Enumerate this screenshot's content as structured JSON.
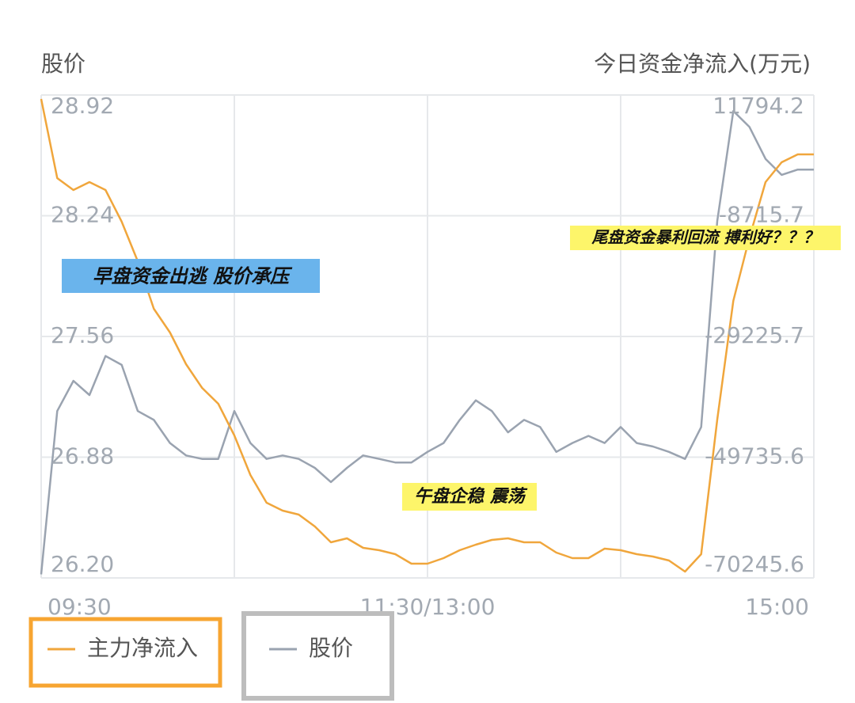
{
  "chart_data": {
    "type": "line",
    "left_axis_label": "股价",
    "right_axis_label": "今日资金净流入(万元)",
    "x": [
      0,
      5,
      10,
      15,
      20,
      25,
      30,
      35,
      40,
      45,
      50,
      55,
      60,
      65,
      70,
      75,
      80,
      85,
      90,
      95,
      100,
      105,
      110,
      115,
      120,
      125,
      130,
      135,
      140,
      145,
      150,
      155,
      160,
      165,
      170,
      175,
      180,
      185,
      190,
      195,
      200,
      205,
      210,
      215,
      220,
      225,
      230,
      235,
      240
    ],
    "xlim": [
      0,
      240
    ],
    "xticks": [
      {
        "value": 0,
        "label": "09:30"
      },
      {
        "value": 60,
        "label": null
      },
      {
        "value": 120,
        "label": "11:30/13:00"
      },
      {
        "value": 180,
        "label": null
      },
      {
        "value": 240,
        "label": "15:00"
      }
    ],
    "ylim": [
      26.2,
      28.92
    ],
    "yticks": [
      28.92,
      28.24,
      27.56,
      26.88,
      {
        "value": 26.2,
        "label": "26.20"
      }
    ],
    "y2lim": [
      -70245.6,
      11794.2
    ],
    "y2ticks": [
      11794.2,
      -8715.7,
      -29225.7,
      -49735.6,
      -70245.6
    ],
    "grid": true,
    "series": [
      {
        "name": "主力净流入",
        "color": "#f0a63c",
        "axis": "y2",
        "values": [
          11122,
          -2327,
          -4345,
          -3000,
          -4345,
          -9724,
          -16449,
          -24518,
          -28553,
          -33933,
          -37967,
          -40657,
          -46037,
          -52761,
          -57468,
          -58813,
          -59486,
          -61503,
          -64193,
          -63520,
          -65134,
          -65538,
          -66210,
          -67824,
          -67824,
          -66883,
          -65538,
          -64596,
          -63789,
          -63520,
          -64193,
          -64193,
          -65941,
          -66883,
          -66883,
          -65269,
          -65538,
          -66210,
          -66614,
          -67286,
          -69169,
          -66210,
          -43347,
          -23173,
          -12414,
          -3000,
          362,
          1707,
          1707
        ]
      },
      {
        "name": "股价",
        "color": "#9aa3b0",
        "values": [
          26.22,
          27.14,
          27.31,
          27.23,
          27.45,
          27.4,
          27.14,
          27.09,
          26.96,
          26.89,
          26.87,
          26.87,
          27.14,
          26.96,
          26.87,
          26.89,
          26.87,
          26.82,
          26.74,
          26.82,
          26.89,
          26.87,
          26.85,
          26.85,
          26.91,
          26.96,
          27.09,
          27.2,
          27.14,
          27.02,
          27.09,
          27.05,
          26.91,
          26.96,
          27.0,
          26.96,
          27.05,
          26.96,
          26.94,
          26.91,
          26.87,
          27.05,
          28.21,
          28.83,
          28.74,
          28.56,
          28.47,
          28.5,
          28.5
        ]
      }
    ],
    "annotations": [
      {
        "text": "早盘资金出逃 股价承压"
      },
      {
        "text": "尾盘资金暴利回流 搏利好？？？"
      },
      {
        "text": "午盘企稳 震荡"
      }
    ]
  }
}
